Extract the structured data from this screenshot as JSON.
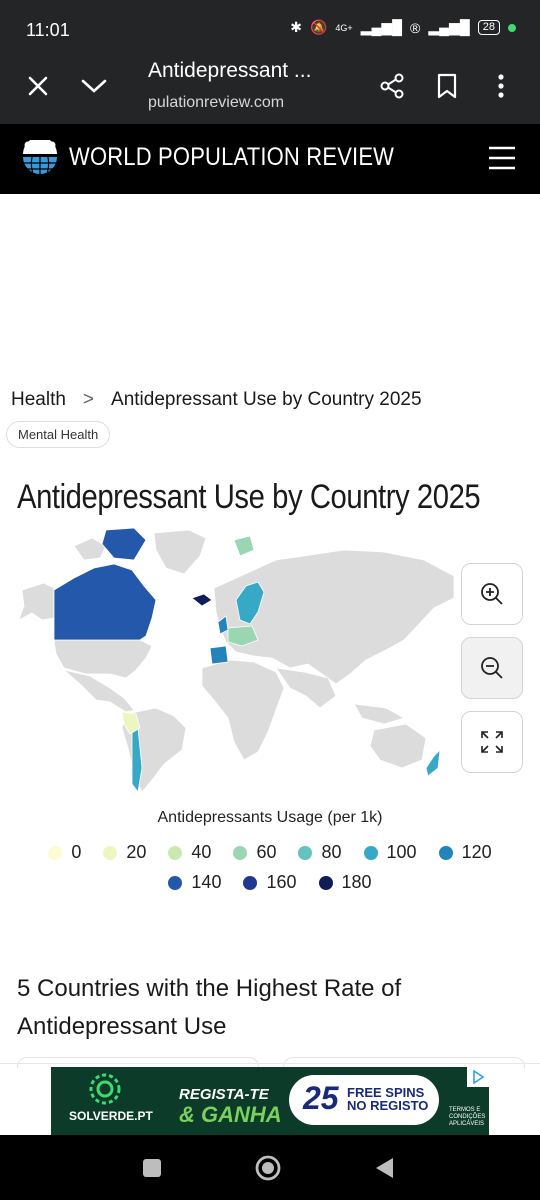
{
  "status": {
    "time": "11:01",
    "network": "4G+",
    "battery": "28"
  },
  "browser": {
    "tab_title": "Antidepressant ...",
    "url": "pulationreview.com"
  },
  "site": {
    "title": "WORLD POPULATION REVIEW"
  },
  "breadcrumb": {
    "parent": "Health",
    "separator": ">",
    "current": "Antidepressant Use by Country 2025"
  },
  "tag": "Mental Health",
  "page_title": "Antidepressant Use by Country 2025",
  "map": {
    "legend_title": "Antidepressants Usage (per 1k)",
    "legend": [
      {
        "label": "0",
        "color": "#fdfbd3"
      },
      {
        "label": "20",
        "color": "#eef6c0"
      },
      {
        "label": "40",
        "color": "#cbe9ae"
      },
      {
        "label": "60",
        "color": "#9bd6b3"
      },
      {
        "label": "80",
        "color": "#65c2be"
      },
      {
        "label": "100",
        "color": "#37a8c6"
      },
      {
        "label": "120",
        "color": "#2483bb"
      },
      {
        "label": "140",
        "color": "#2458aa"
      },
      {
        "label": "160",
        "color": "#203890"
      },
      {
        "label": "180",
        "color": "#0e1c57"
      }
    ],
    "land_color": "#dcdcdc"
  },
  "section_heading": "5 Countries with the Highest Rate of Antidepressant Use",
  "ad": {
    "brand": "SOLVERDE.PT",
    "promo_line1": "REGISTA-TE",
    "promo_line2": "& GANHA",
    "number": "25",
    "spins_line1": "FREE SPINS",
    "spins_line2": "NO REGISTO",
    "terms": "TERMOS E CONDIÇÕES APLICÁVEIS"
  }
}
